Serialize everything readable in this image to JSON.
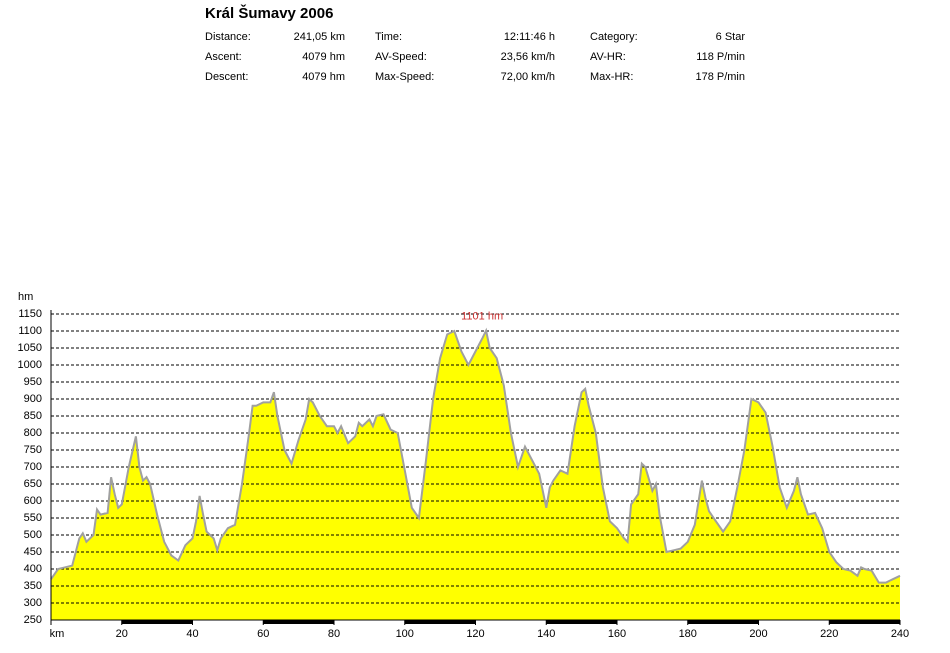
{
  "header": {
    "title": "Král Šumavy 2006",
    "stats": [
      [
        {
          "label": "Distance:",
          "value": "241,05 km"
        },
        {
          "label": "Time:",
          "value": "12:11:46 h"
        },
        {
          "label": "Category:",
          "value": "6 Star"
        }
      ],
      [
        {
          "label": "Ascent:",
          "value": "4079 hm"
        },
        {
          "label": "AV-Speed:",
          "value": "23,56 km/h"
        },
        {
          "label": "AV-HR:",
          "value": "118 P/min"
        }
      ],
      [
        {
          "label": "Descent:",
          "value": "4079 hm"
        },
        {
          "label": "Max-Speed:",
          "value": "72,00 km/h"
        },
        {
          "label": "Max-HR:",
          "value": "178 P/min"
        }
      ]
    ]
  },
  "chart_data": {
    "type": "area",
    "ylabel": "hm",
    "fill": "#ffff00",
    "line_color": "#a0a0a0",
    "grid": true,
    "xlim": [
      0,
      240
    ],
    "ylim": [
      250,
      1150
    ],
    "xticks": [
      {
        "value": 0,
        "label": "km"
      },
      20,
      40,
      60,
      80,
      100,
      120,
      140,
      160,
      180,
      200,
      220,
      240
    ],
    "yticks": [
      250,
      300,
      350,
      400,
      450,
      500,
      550,
      600,
      650,
      700,
      750,
      800,
      850,
      900,
      950,
      1000,
      1050,
      1100,
      1150
    ],
    "annotations": [
      {
        "text": "1101 hm",
        "x": 123,
        "y": 1101,
        "color": "#cc3333"
      }
    ],
    "x": [
      0,
      2,
      4,
      6,
      8,
      9,
      10,
      12,
      13,
      14,
      16,
      17,
      18,
      19,
      20,
      22,
      24,
      25,
      26,
      27,
      28,
      30,
      32,
      34,
      36,
      38,
      40,
      41,
      42,
      43,
      44,
      46,
      47,
      48,
      50,
      52,
      54,
      56,
      57,
      58,
      60,
      62,
      63,
      64,
      66,
      68,
      70,
      72,
      73,
      74,
      76,
      78,
      80,
      81,
      82,
      84,
      86,
      87,
      88,
      90,
      91,
      92,
      94,
      96,
      98,
      100,
      102,
      104,
      106,
      108,
      110,
      112,
      114,
      116,
      118,
      120,
      122,
      123,
      124,
      126,
      128,
      130,
      132,
      134,
      136,
      138,
      140,
      141,
      142,
      144,
      146,
      148,
      150,
      151,
      152,
      154,
      156,
      158,
      160,
      162,
      163,
      164,
      166,
      167,
      168,
      170,
      171,
      172,
      174,
      176,
      178,
      180,
      182,
      184,
      185,
      186,
      188,
      190,
      192,
      194,
      196,
      198,
      200,
      202,
      204,
      206,
      208,
      210,
      211,
      212,
      214,
      216,
      218,
      220,
      222,
      224,
      226,
      228,
      229,
      230,
      232,
      234,
      236,
      238,
      240
    ],
    "values": [
      370,
      400,
      405,
      410,
      490,
      505,
      480,
      500,
      575,
      560,
      565,
      670,
      620,
      580,
      590,
      700,
      790,
      700,
      660,
      670,
      650,
      560,
      480,
      440,
      425,
      470,
      490,
      540,
      615,
      560,
      510,
      490,
      455,
      490,
      520,
      530,
      650,
      800,
      880,
      880,
      890,
      890,
      920,
      850,
      750,
      710,
      780,
      840,
      900,
      890,
      850,
      820,
      820,
      800,
      820,
      770,
      790,
      830,
      820,
      840,
      820,
      850,
      855,
      810,
      800,
      690,
      580,
      550,
      720,
      900,
      1020,
      1090,
      1100,
      1040,
      1000,
      1040,
      1080,
      1101,
      1050,
      1020,
      940,
      800,
      700,
      760,
      720,
      680,
      580,
      640,
      660,
      690,
      680,
      820,
      920,
      930,
      880,
      800,
      640,
      540,
      520,
      490,
      480,
      590,
      620,
      710,
      700,
      630,
      650,
      560,
      450,
      455,
      460,
      480,
      530,
      660,
      610,
      570,
      540,
      510,
      540,
      640,
      750,
      900,
      890,
      860,
      760,
      640,
      580,
      630,
      670,
      620,
      560,
      565,
      520,
      450,
      420,
      400,
      395,
      380,
      405,
      400,
      395,
      360,
      360,
      370,
      380
    ]
  }
}
